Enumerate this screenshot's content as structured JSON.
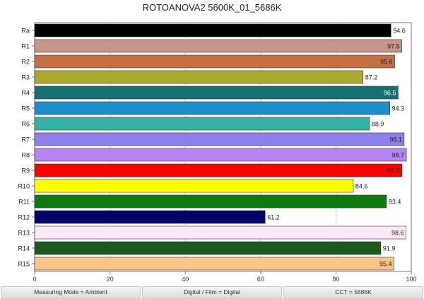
{
  "chart_data": {
    "type": "bar",
    "orientation": "horizontal",
    "title": "ROTOANOVA2 5600K_01_5686K",
    "categories": [
      "Ra",
      "R1",
      "R2",
      "R3",
      "R4",
      "R5",
      "R6",
      "R7",
      "R8",
      "R9",
      "R10",
      "R11",
      "R12",
      "R13",
      "R14",
      "R15"
    ],
    "values": [
      94.6,
      97.5,
      95.6,
      87.2,
      96.5,
      94.3,
      88.9,
      98.1,
      98.7,
      97.5,
      84.6,
      93.4,
      61.2,
      98.6,
      91.9,
      95.4
    ],
    "value_labels": [
      "94.6",
      "97.5",
      "95.6",
      "87.2",
      "96.5",
      "94.3",
      "88.9",
      "98.1",
      "98.7",
      "97.5",
      "84.6",
      "93.4",
      "61.2",
      "98.6",
      "91.9",
      "95.4"
    ],
    "colors": [
      "#000000",
      "#c7968a",
      "#c46f46",
      "#aaa82e",
      "#137170",
      "#1d8dcc",
      "#34b3a4",
      "#8d80ea",
      "#b486f5",
      "#ff0000",
      "#ffff00",
      "#0f7a0f",
      "#000066",
      "#fbeaf5",
      "#1a5a1c",
      "#fdc487"
    ],
    "xlim": [
      0,
      100
    ],
    "xticks": [
      "0",
      "20",
      "40",
      "60",
      "80",
      "100"
    ],
    "grid": true
  },
  "footer": {
    "measuring_mode": "Measuring Mode = Ambient",
    "digital_film": "Digital / Film = Digital",
    "cct": "CCT = 5686K"
  }
}
